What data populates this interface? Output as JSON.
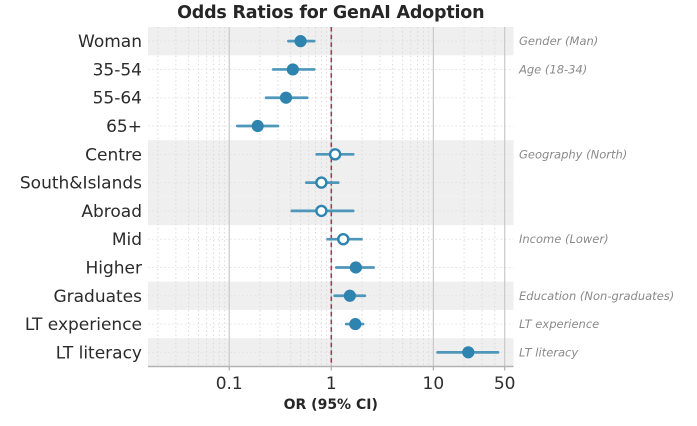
{
  "title": "Odds Ratios for GenAI Adoption",
  "chart_data": {
    "type": "scatter",
    "subtype": "forest-plot",
    "title": "Odds Ratios for GenAI Adoption",
    "xlabel": "OR (95% CI)",
    "ylabel": "",
    "x_scale": "log",
    "xlim": [
      0.016,
      61
    ],
    "grid": true,
    "legend_position": "none",
    "x_ticks": [
      {
        "value": 0.1,
        "label": "0.1"
      },
      {
        "value": 1,
        "label": "1"
      },
      {
        "value": 10,
        "label": "10"
      },
      {
        "value": 50,
        "label": "50"
      }
    ],
    "reference_line": {
      "value": 1,
      "style": "dashed",
      "color": "#a03c52"
    },
    "rows": [
      {
        "label": "Woman",
        "or": 0.5,
        "ci_low": 0.38,
        "ci_high": 0.68,
        "marker": "filled",
        "shaded": true,
        "annotation": "Gender (Man)"
      },
      {
        "label": "35-54",
        "or": 0.42,
        "ci_low": 0.27,
        "ci_high": 0.68,
        "marker": "filled",
        "shaded": false,
        "annotation": "Age (18-34)"
      },
      {
        "label": "55-64",
        "or": 0.36,
        "ci_low": 0.23,
        "ci_high": 0.58,
        "marker": "filled",
        "shaded": false,
        "annotation": ""
      },
      {
        "label": "65+",
        "or": 0.19,
        "ci_low": 0.12,
        "ci_high": 0.3,
        "marker": "filled",
        "shaded": false,
        "annotation": ""
      },
      {
        "label": "Centre",
        "or": 1.09,
        "ci_low": 0.72,
        "ci_high": 1.64,
        "marker": "open",
        "shaded": true,
        "annotation": "Geography (North)"
      },
      {
        "label": "South&Islands",
        "or": 0.8,
        "ci_low": 0.57,
        "ci_high": 1.17,
        "marker": "open",
        "shaded": true,
        "annotation": ""
      },
      {
        "label": "Abroad",
        "or": 0.8,
        "ci_low": 0.41,
        "ci_high": 1.64,
        "marker": "open",
        "shaded": true,
        "annotation": ""
      },
      {
        "label": "Mid",
        "or": 1.31,
        "ci_low": 0.92,
        "ci_high": 1.98,
        "marker": "open",
        "shaded": false,
        "annotation": "Income (Lower)"
      },
      {
        "label": "Higher",
        "or": 1.74,
        "ci_low": 1.12,
        "ci_high": 2.6,
        "marker": "filled",
        "shaded": false,
        "annotation": ""
      },
      {
        "label": "Graduates",
        "or": 1.52,
        "ci_low": 1.08,
        "ci_high": 2.13,
        "marker": "filled",
        "shaded": true,
        "annotation": "Education (Non-graduates)"
      },
      {
        "label": "LT experience",
        "or": 1.72,
        "ci_low": 1.4,
        "ci_high": 2.05,
        "marker": "filled",
        "shaded": false,
        "annotation": "LT experience"
      },
      {
        "label": "LT literacy",
        "or": 22,
        "ci_low": 11,
        "ci_high": 43,
        "marker": "filled",
        "shaded": true,
        "annotation": "LT literacy"
      }
    ],
    "colors": {
      "marker": "#2f84af",
      "whisker": "#4e97ba",
      "open_fill": "#ffffff",
      "band": "#efefef",
      "major_grid": "#c9c9c9",
      "minor_grid": "#dadada",
      "row_grid": "#e2e2e2",
      "axis_line": "#b3b3b3",
      "reference": "#a03c52",
      "title_text": "#262626",
      "tick_text": "#2e2e2e",
      "label_text": "#2b2b2b",
      "annotation_text": "#8a8a8a"
    }
  }
}
